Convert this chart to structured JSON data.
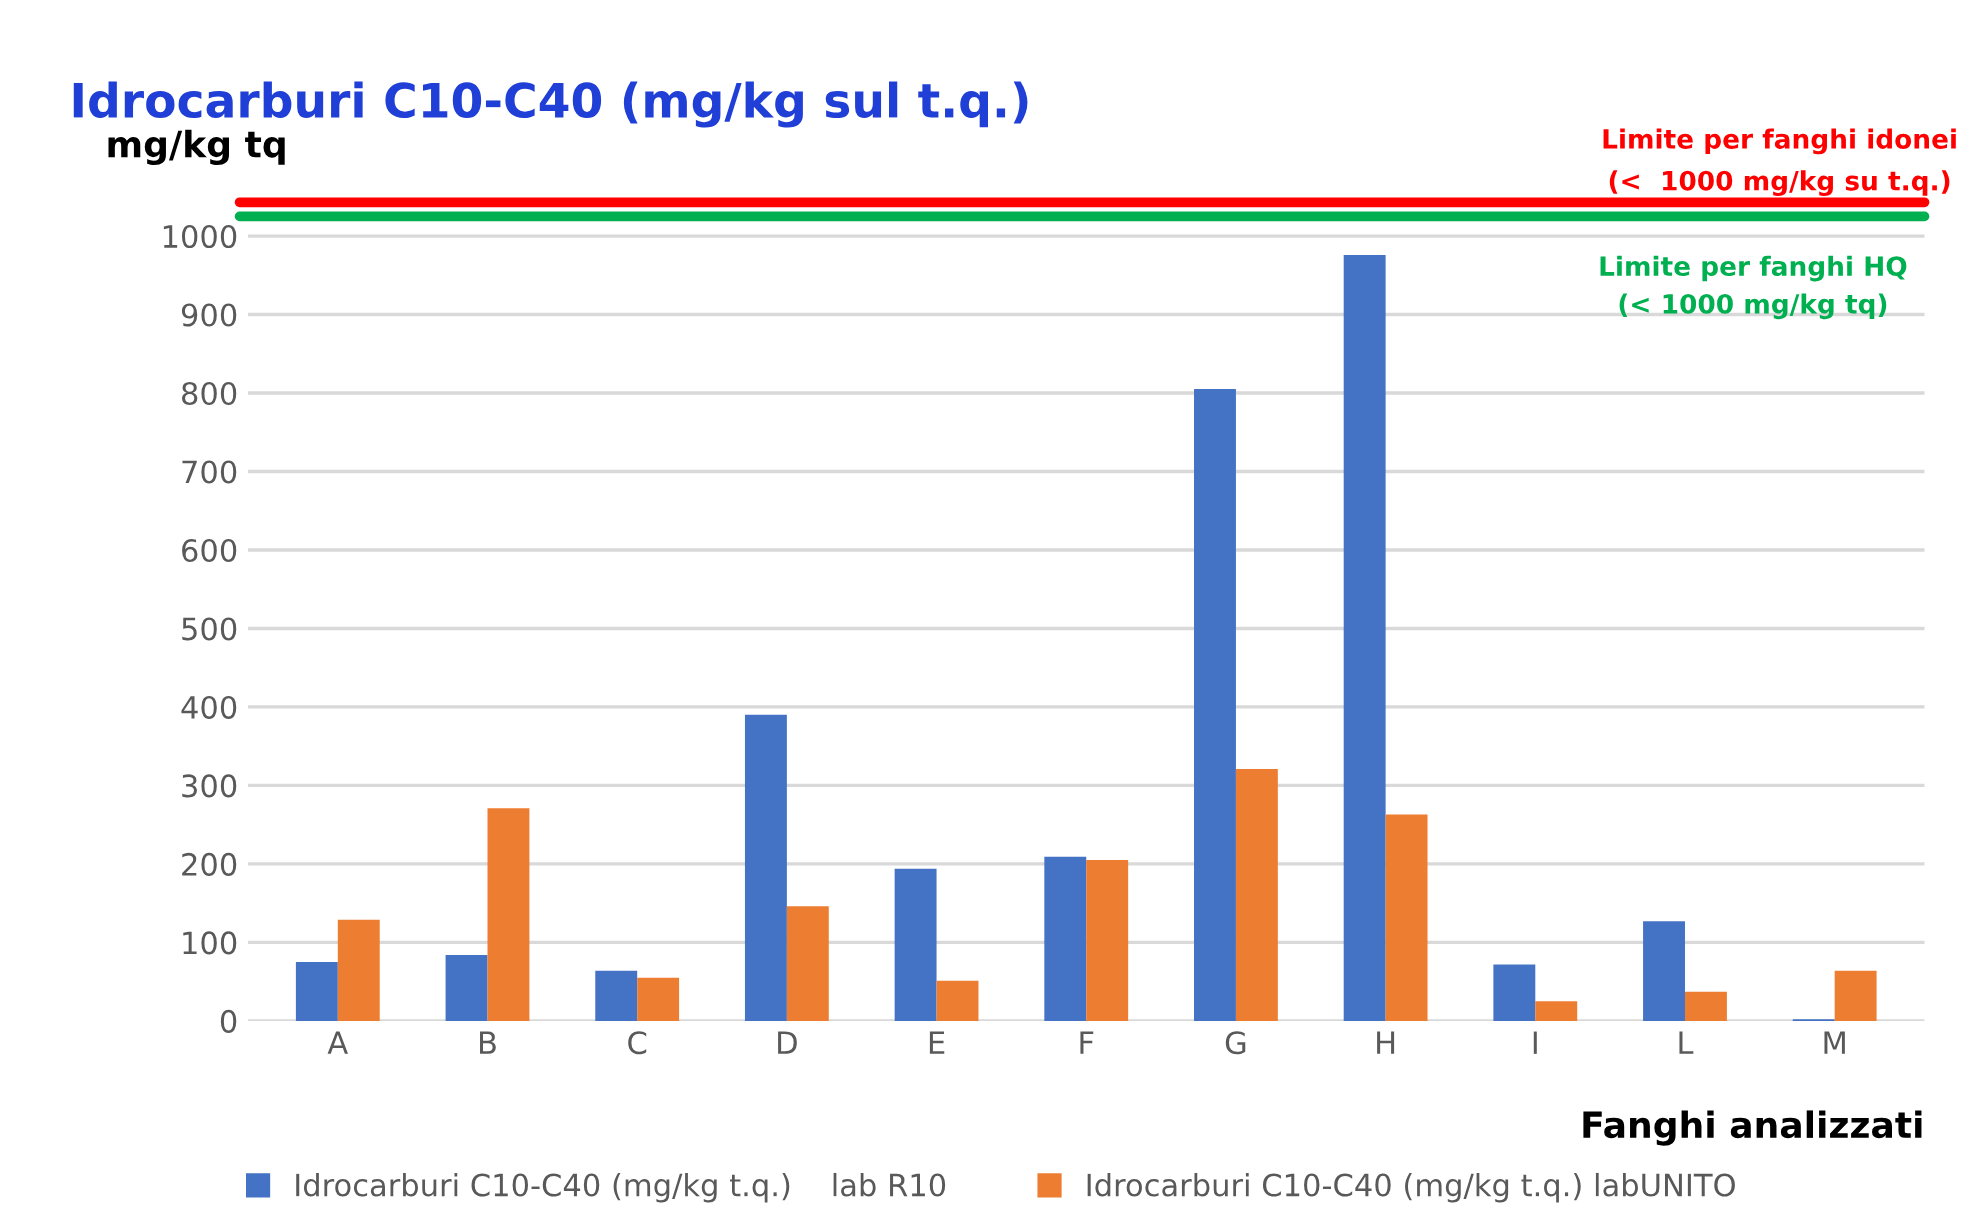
{
  "chart_data": {
    "type": "bar",
    "title": "Idrocarburi C10-C40 (mg/kg sul t.q.)",
    "ylabel": "mg/kg tq",
    "xlabel": "Fanghi analizzati",
    "categories": [
      "A",
      "B",
      "C",
      "D",
      "E",
      "F",
      "G",
      "H",
      "I",
      "L",
      "M"
    ],
    "series": [
      {
        "name": "Idrocarburi C10-C40 (mg/kg t.q.)    lab R10",
        "color": "#4472c4",
        "values": [
          75,
          84,
          64,
          390,
          194,
          209,
          805,
          976,
          72,
          127,
          2
        ]
      },
      {
        "name": "Idrocarburi C10-C40 (mg/kg t.q.) labUNITO",
        "color": "#ed7d31",
        "values": [
          129,
          271,
          55,
          146,
          51,
          205,
          321,
          263,
          25,
          37,
          64
        ]
      }
    ],
    "ylim": [
      0,
      1050
    ],
    "yticks": [
      0,
      100,
      200,
      300,
      400,
      500,
      600,
      700,
      800,
      900,
      1000
    ],
    "grid": "y",
    "legend": "bottom",
    "ref_lines": [
      {
        "axis": "y",
        "value": 1043,
        "label": "Limite per fanghi idonei\n(<  1000 mg/kg su t.q.)",
        "color": "#ff0000"
      },
      {
        "axis": "y",
        "value": 1025,
        "label": "Limite per fanghi HQ\n(< 1000 mg/kg tq)",
        "color": "#00b050"
      }
    ]
  }
}
